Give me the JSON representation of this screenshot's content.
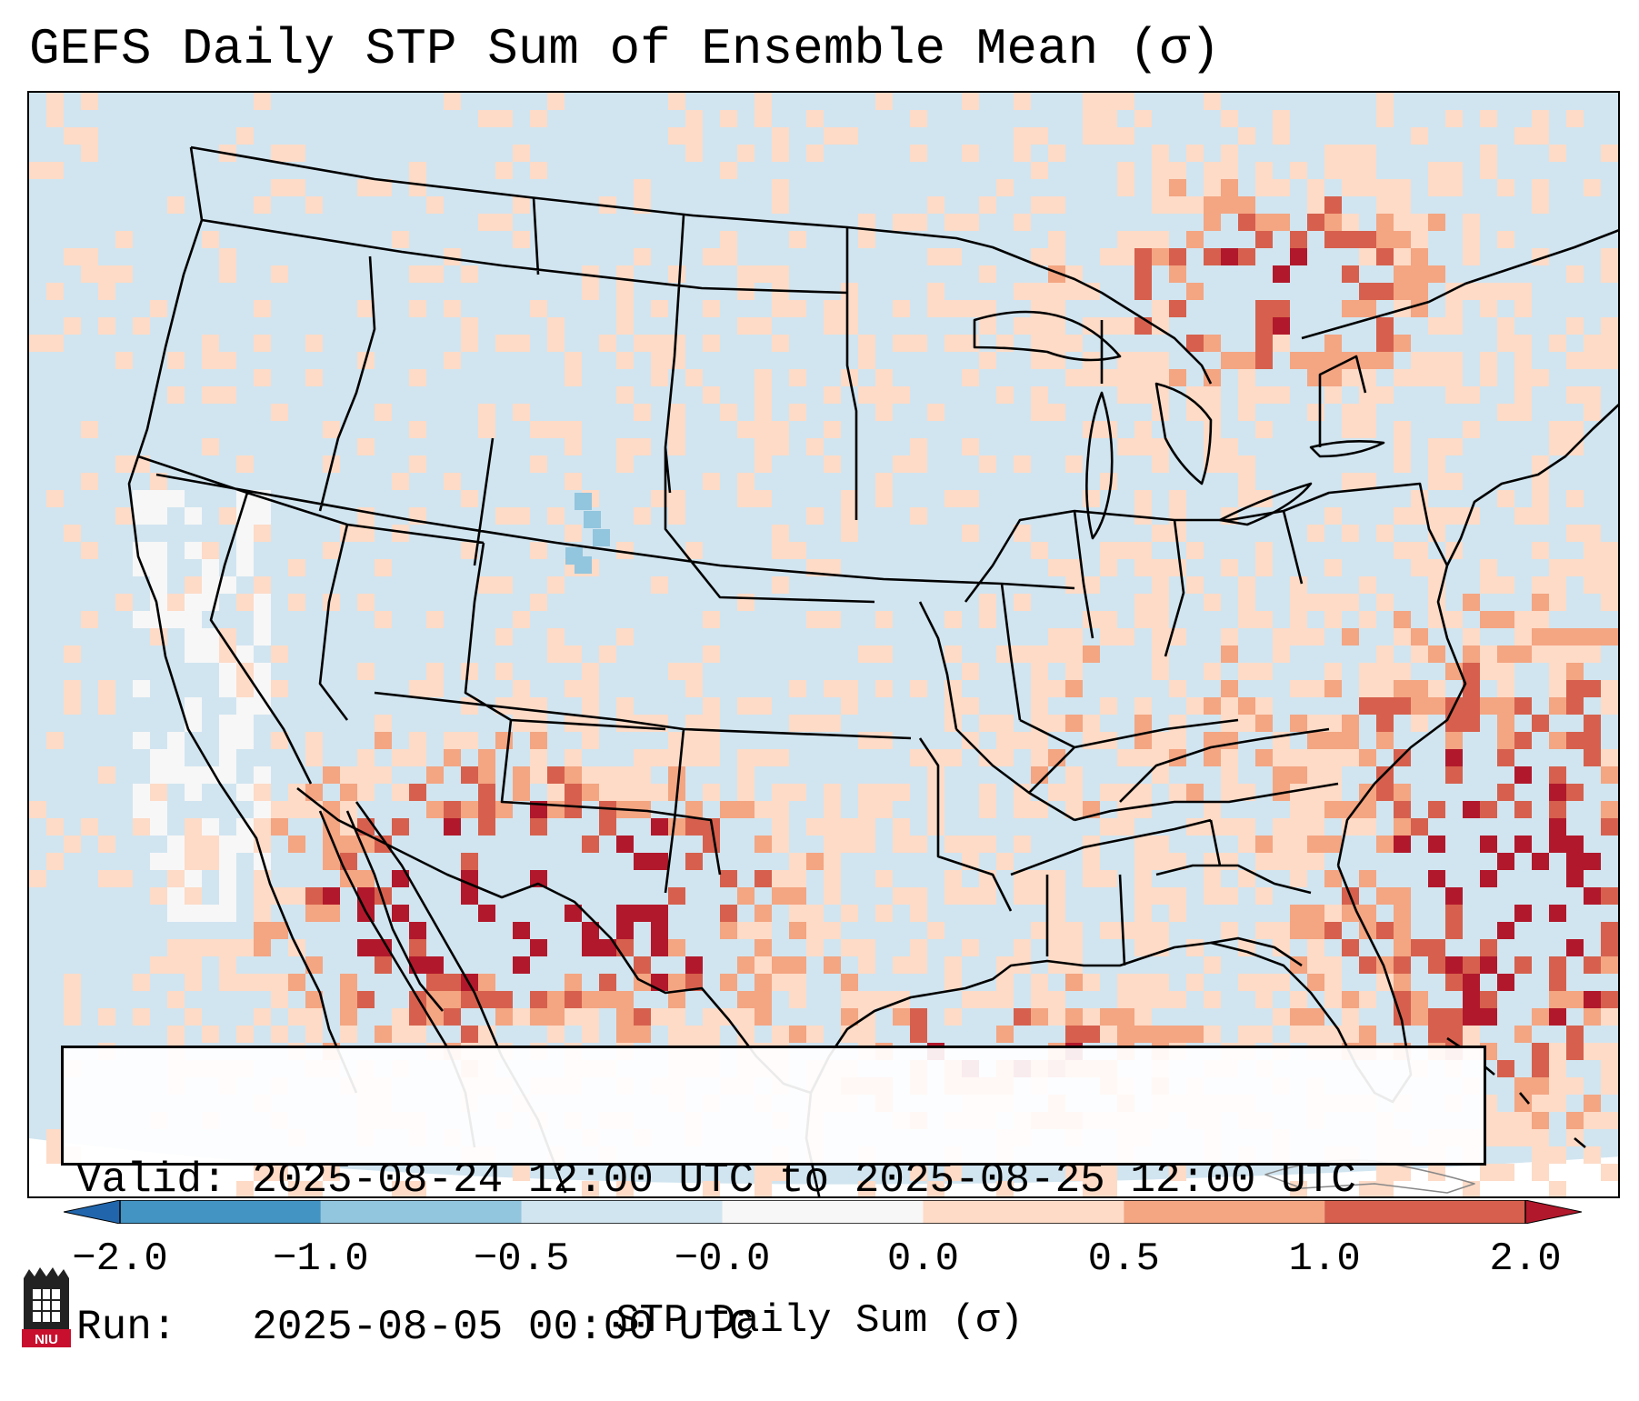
{
  "title": "GEFS Daily STP Sum of Ensemble Mean (σ)",
  "info": {
    "valid_line": "Valid: 2025-08-24 12:00 UTC to 2025-08-25 12:00 UTC",
    "run_line": "Run:   2025-08-05 00:00 UTC"
  },
  "colorbar": {
    "label": "STP Daily Sum (σ)",
    "ticks": [
      "−2.0",
      "−1.0",
      "−0.5",
      "−0.0",
      "0.0",
      "0.5",
      "1.0",
      "2.0"
    ],
    "bins": [
      {
        "range": "< -2.0",
        "color": "#2166ac"
      },
      {
        "range": "-2.0 to -1.0",
        "color": "#4393c3"
      },
      {
        "range": "-1.0 to -0.5",
        "color": "#92c5de"
      },
      {
        "range": "-0.5 to -0.0",
        "color": "#d1e5f0"
      },
      {
        "range": "-0.0 to 0.0",
        "color": "#f7f7f7"
      },
      {
        "range": "0.0 to 0.5",
        "color": "#fddbc7"
      },
      {
        "range": "0.5 to 1.0",
        "color": "#f4a582"
      },
      {
        "range": "1.0 to 2.0",
        "color": "#d6604d"
      },
      {
        "range": "> 2.0",
        "color": "#b2182b"
      }
    ]
  },
  "logo": {
    "text": "NIU",
    "color": "#c8102e"
  }
}
